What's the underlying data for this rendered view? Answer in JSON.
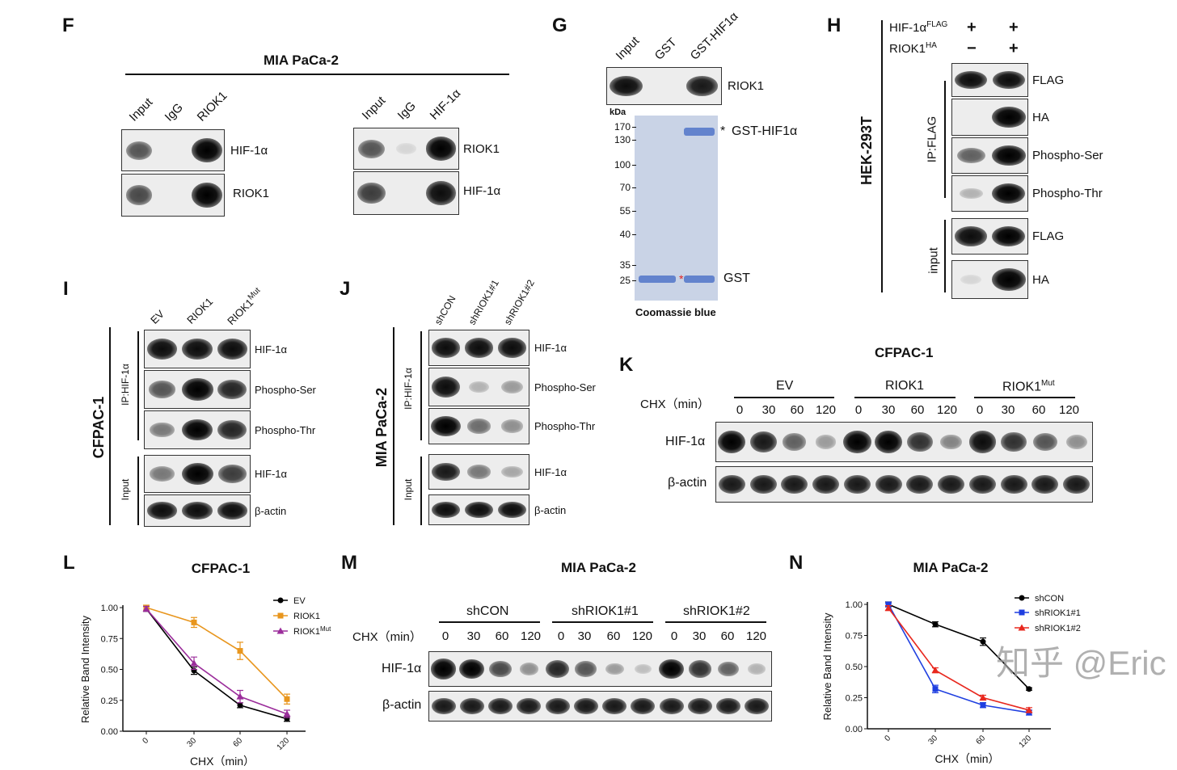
{
  "panels": {
    "F": {
      "letter": "F",
      "title": "MIA PaCa-2",
      "left": {
        "lanes": [
          "Input",
          "IgG",
          "RIOK1"
        ],
        "blots": [
          {
            "label": "HIF-1α",
            "bands": [
              0.6,
              0,
              1.0
            ]
          },
          {
            "label": "RIOK1",
            "bands": [
              0.65,
              0,
              1.0
            ]
          }
        ]
      },
      "right": {
        "lanes": [
          "Input",
          "IgG",
          "HIF-1α"
        ],
        "blots": [
          {
            "label": "RIOK1",
            "bands": [
              0.6,
              0.05,
              0.95
            ]
          },
          {
            "label": "HIF-1α",
            "bands": [
              0.7,
              0,
              0.9
            ]
          }
        ]
      }
    },
    "G": {
      "letter": "G",
      "lanes": [
        "Input",
        "GST",
        "GST-HIF1α"
      ],
      "blot": {
        "label": "RIOK1",
        "bands": [
          0.9,
          0,
          0.85
        ]
      },
      "kda_label": "kDa",
      "markers": [
        "170",
        "130",
        "100",
        "70",
        "55",
        "40",
        "35",
        "25"
      ],
      "band_labels": {
        "gst_hif": "GST-HIF1α",
        "gst": "GST",
        "asterisk": "*"
      },
      "caption": "Coomassie blue",
      "gel_color": "#c9d3e6",
      "band_color": "#4a6fc7"
    },
    "H": {
      "letter": "H",
      "cell_line": "HEK-293T",
      "conditions": [
        {
          "label": "HIF-1α",
          "sup": "FLAG",
          "values": [
            "+",
            "+"
          ]
        },
        {
          "label": "RIOK1",
          "sup": "HA",
          "values": [
            "−",
            "+"
          ]
        }
      ],
      "ip_label": "IP:FLAG",
      "input_label": "input",
      "blots": [
        {
          "label": "FLAG",
          "bands": [
            0.9,
            0.9
          ]
        },
        {
          "label": "HA",
          "bands": [
            0,
            1.0
          ]
        },
        {
          "label": "Phospho-Ser",
          "bands": [
            0.55,
            1.0
          ]
        },
        {
          "label": "Phospho-Thr",
          "bands": [
            0.2,
            0.95
          ]
        },
        {
          "label": "FLAG",
          "bands": [
            0.9,
            0.95
          ]
        },
        {
          "label": "HA",
          "bands": [
            0.05,
            1.0
          ]
        }
      ]
    },
    "I": {
      "letter": "I",
      "cell_line": "CFPAC-1",
      "lanes": [
        "EV",
        "RIOK1",
        "RIOK1"
      ],
      "lane_sup": "Mut",
      "ip_label": "IP:HIF-1α",
      "input_label": "Input",
      "blots": [
        {
          "label": "HIF-1α",
          "bands": [
            0.9,
            0.9,
            0.9
          ]
        },
        {
          "label": "Phospho-Ser",
          "bands": [
            0.6,
            1.0,
            0.8
          ]
        },
        {
          "label": "Phospho-Thr",
          "bands": [
            0.45,
            0.95,
            0.8
          ]
        },
        {
          "label": "HIF-1α",
          "bands": [
            0.45,
            1.0,
            0.7
          ]
        },
        {
          "label": "β-actin",
          "bands": [
            0.9,
            0.9,
            0.9
          ]
        }
      ]
    },
    "J": {
      "letter": "J",
      "cell_line": "MIA PaCa-2",
      "lanes": [
        "shCON",
        "shRIOK1#1",
        "shRIOK1#2"
      ],
      "ip_label": "IP:HIF-1α",
      "input_label": "Input",
      "blots": [
        {
          "label": "HIF-1α",
          "bands": [
            0.9,
            0.9,
            0.9
          ]
        },
        {
          "label": "Phospho-Ser",
          "bands": [
            0.9,
            0.2,
            0.3
          ]
        },
        {
          "label": "Phospho-Thr",
          "bands": [
            0.95,
            0.5,
            0.35
          ]
        },
        {
          "label": "HIF-1α",
          "bands": [
            0.85,
            0.45,
            0.25
          ]
        },
        {
          "label": "β-actin",
          "bands": [
            0.9,
            0.9,
            0.9
          ]
        }
      ]
    },
    "K": {
      "letter": "K",
      "title": "CFPAC-1",
      "groups": [
        "EV",
        "RIOK1",
        "RIOK1"
      ],
      "group_sup": "Mut",
      "chx_label": "CHX（min）",
      "times": [
        "0",
        "30",
        "60",
        "120"
      ],
      "blots": [
        {
          "label": "HIF-1α",
          "bands": [
            0.95,
            0.85,
            0.55,
            0.3,
            1.0,
            0.95,
            0.75,
            0.4,
            0.9,
            0.75,
            0.6,
            0.35
          ]
        },
        {
          "label": "β-actin",
          "bands": [
            0.85,
            0.85,
            0.85,
            0.85,
            0.85,
            0.85,
            0.85,
            0.85,
            0.85,
            0.85,
            0.85,
            0.85
          ]
        }
      ]
    },
    "L": {
      "letter": "L"
    },
    "M": {
      "letter": "M",
      "title": "MIA PaCa-2",
      "groups": [
        "shCON",
        "shRIOK1#1",
        "shRIOK1#2"
      ],
      "chx_label": "CHX（min）",
      "times": [
        "0",
        "30",
        "60",
        "120"
      ],
      "blots": [
        {
          "label": "HIF-1α",
          "bands": [
            1.0,
            0.95,
            0.65,
            0.35,
            0.8,
            0.6,
            0.3,
            0.15,
            0.95,
            0.75,
            0.55,
            0.2
          ]
        },
        {
          "label": "β-actin",
          "bands": [
            0.85,
            0.85,
            0.85,
            0.85,
            0.85,
            0.85,
            0.85,
            0.85,
            0.85,
            0.85,
            0.85,
            0.85
          ]
        }
      ]
    },
    "N": {
      "letter": "N"
    }
  },
  "watermark": "知乎 @Eric",
  "chart_data": [
    {
      "type": "line",
      "panel": "L",
      "title": "CFPAC-1",
      "xlabel": "CHX（min）",
      "ylabel": "Relative Band Intensity",
      "categories": [
        "0",
        "30",
        "60",
        "120"
      ],
      "ylim": [
        0,
        1
      ],
      "yticks": [
        "0.00",
        "0.25",
        "0.50",
        "0.75",
        "1.00"
      ],
      "grid": false,
      "legend": "top-right",
      "series": [
        {
          "name": "EV",
          "color": "#000000",
          "marker": "circle",
          "values": [
            0.99,
            0.49,
            0.21,
            0.1
          ],
          "errors": [
            0.02,
            0.03,
            0.02,
            0.02
          ]
        },
        {
          "name": "RIOK1",
          "color": "#e8961e",
          "marker": "square",
          "values": [
            1.0,
            0.88,
            0.65,
            0.26
          ],
          "errors": [
            0.02,
            0.04,
            0.07,
            0.04
          ]
        },
        {
          "name": "RIOK1",
          "name_sup": "Mut",
          "color": "#9b2d9b",
          "marker": "triangle",
          "values": [
            0.99,
            0.55,
            0.28,
            0.14
          ],
          "errors": [
            0.02,
            0.05,
            0.05,
            0.03
          ]
        }
      ]
    },
    {
      "type": "line",
      "panel": "N",
      "title": "MIA PaCa-2",
      "xlabel": "CHX（min）",
      "ylabel": "Relative Band Intensity",
      "categories": [
        "0",
        "30",
        "60",
        "120"
      ],
      "ylim": [
        0,
        1
      ],
      "yticks": [
        "0.00",
        "0.25",
        "0.50",
        "0.75",
        "1.00"
      ],
      "grid": false,
      "legend": "top-right",
      "series": [
        {
          "name": "shCON",
          "color": "#000000",
          "marker": "circle",
          "values": [
            1.0,
            0.84,
            0.7,
            0.32
          ],
          "errors": [
            0.02,
            0.02,
            0.03,
            0.01
          ]
        },
        {
          "name": "shRIOK1#1",
          "color": "#1f3fe0",
          "marker": "square",
          "values": [
            1.0,
            0.32,
            0.19,
            0.13
          ],
          "errors": [
            0.01,
            0.03,
            0.02,
            0.02
          ]
        },
        {
          "name": "shRIOK1#2",
          "color": "#e8281e",
          "marker": "triangle",
          "values": [
            0.97,
            0.47,
            0.25,
            0.15
          ],
          "errors": [
            0.02,
            0.02,
            0.02,
            0.02
          ]
        }
      ]
    }
  ]
}
